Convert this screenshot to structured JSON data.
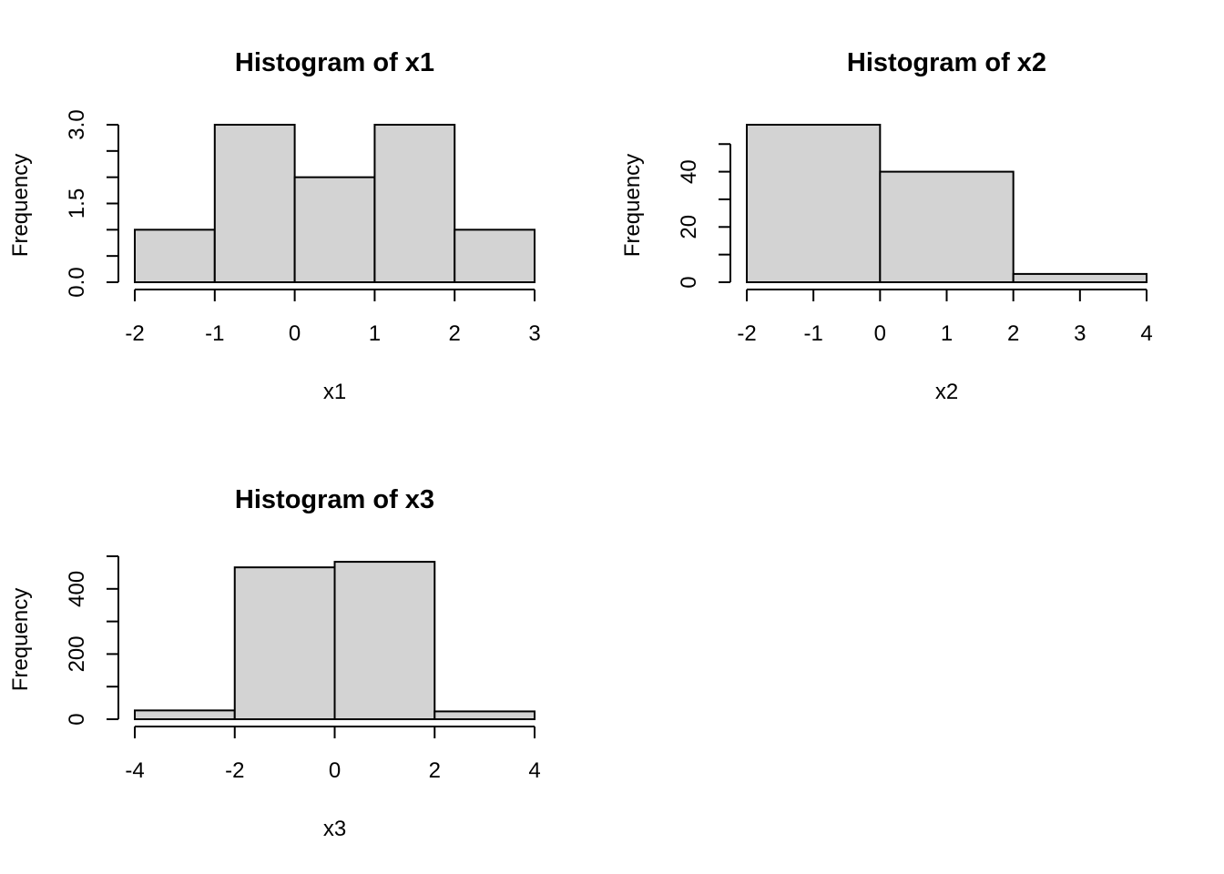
{
  "chart_data": [
    {
      "type": "bar",
      "title": "Histogram of x1",
      "xlabel": "x1",
      "ylabel": "Frequency",
      "breaks": [
        -2,
        -1,
        0,
        1,
        2,
        3
      ],
      "values": [
        1,
        3,
        2,
        3,
        1
      ],
      "xticks": [
        -2,
        -1,
        0,
        1,
        2,
        3
      ],
      "xtick_labels": [
        "-2",
        "-1",
        "0",
        "1",
        "2",
        "3"
      ],
      "yticks": [
        0,
        0.5,
        1,
        1.5,
        2,
        2.5,
        3
      ],
      "ytick_labels": [
        "0.0",
        "",
        "",
        "1.5",
        "",
        "",
        "3.0"
      ],
      "ylim": [
        0,
        3
      ],
      "xlim": [
        -2,
        3
      ],
      "grid": false
    },
    {
      "type": "bar",
      "title": "Histogram of x2",
      "xlabel": "x2",
      "ylabel": "Frequency",
      "breaks": [
        -2,
        0,
        2,
        4
      ],
      "values": [
        57,
        40,
        3
      ],
      "xticks": [
        -2,
        -1,
        0,
        1,
        2,
        3,
        4
      ],
      "xtick_labels": [
        "-2",
        "-1",
        "0",
        "1",
        "2",
        "3",
        "4"
      ],
      "yticks": [
        0,
        10,
        20,
        30,
        40,
        50
      ],
      "ytick_labels": [
        "0",
        "",
        "20",
        "",
        "40",
        ""
      ],
      "ylim": [
        0,
        57
      ],
      "xlim": [
        -2,
        4
      ],
      "grid": false
    },
    {
      "type": "bar",
      "title": "Histogram of x3",
      "xlabel": "x3",
      "ylabel": "Frequency",
      "breaks": [
        -4,
        -2,
        0,
        2,
        4
      ],
      "values": [
        27,
        466,
        483,
        24
      ],
      "xticks": [
        -4,
        -2,
        0,
        2,
        4
      ],
      "xtick_labels": [
        "-4",
        "-2",
        "0",
        "2",
        "4"
      ],
      "yticks": [
        0,
        100,
        200,
        300,
        400,
        500
      ],
      "ytick_labels": [
        "0",
        "",
        "200",
        "",
        "400",
        ""
      ],
      "ylim": [
        0,
        500
      ],
      "xlim": [
        -4,
        4
      ],
      "grid": false
    }
  ]
}
